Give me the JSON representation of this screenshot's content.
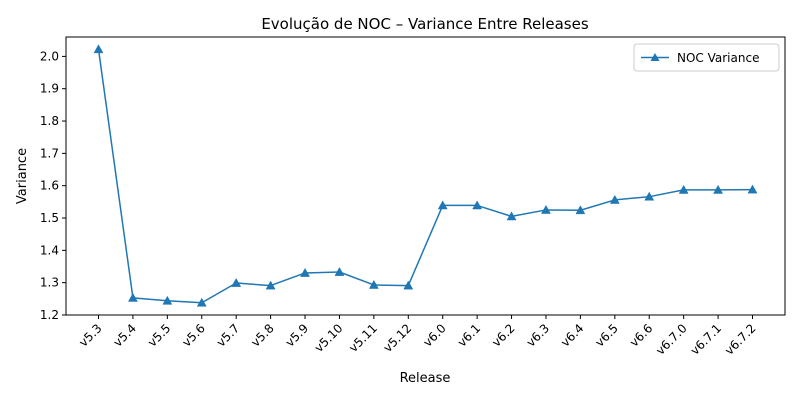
{
  "chart_data": {
    "type": "line",
    "title": "Evolução de NOC – Variance Entre Releases",
    "xlabel": "Release",
    "ylabel": "Variance",
    "categories": [
      "v5.3",
      "v5.4",
      "v5.5",
      "v5.6",
      "v5.7",
      "v5.8",
      "v5.9",
      "v5.10",
      "v5.11",
      "v5.12",
      "v6.0",
      "v6.1",
      "v6.2",
      "v6.3",
      "v6.4",
      "v6.5",
      "v6.6",
      "v6.7.0",
      "v6.7.1",
      "v6.7.2"
    ],
    "series": [
      {
        "name": "NOC Variance",
        "color": "#1f77b4",
        "marker": "triangle-up",
        "values": [
          2.022,
          1.253,
          1.244,
          1.238,
          1.299,
          1.291,
          1.33,
          1.333,
          1.293,
          1.291,
          1.539,
          1.539,
          1.505,
          1.525,
          1.524,
          1.556,
          1.566,
          1.587,
          1.587,
          1.588
        ]
      }
    ],
    "ylim": [
      1.2,
      2.06
    ],
    "yticks": [
      "1.2",
      "1.3",
      "1.4",
      "1.5",
      "1.6",
      "1.7",
      "1.8",
      "1.9",
      "2.0"
    ],
    "grid": false,
    "legend_position": "top-right"
  }
}
